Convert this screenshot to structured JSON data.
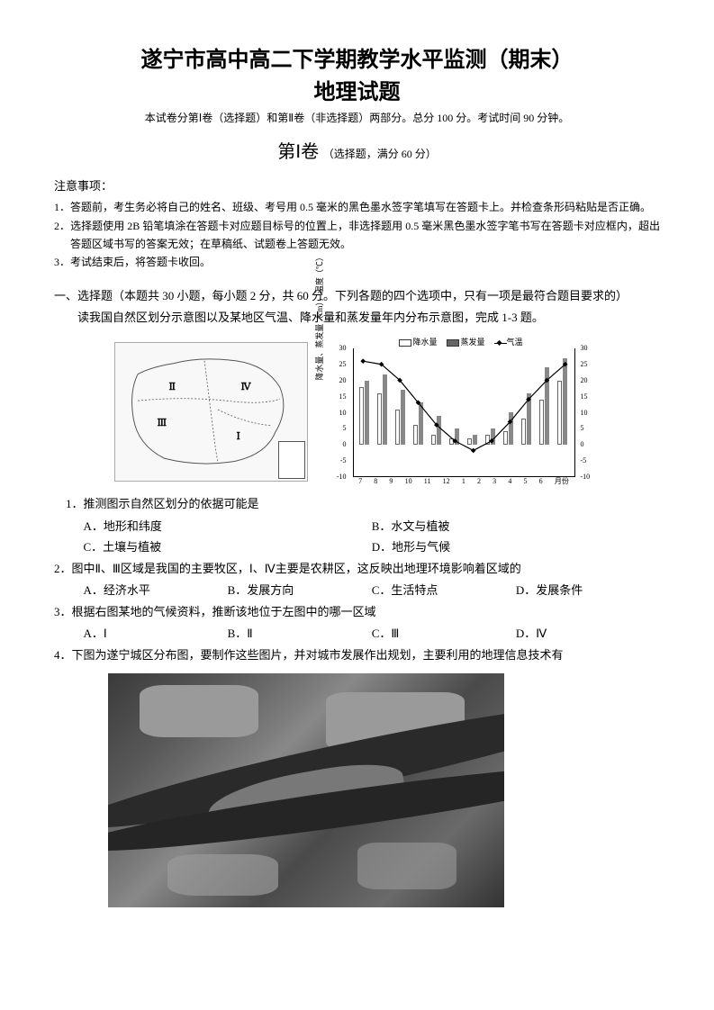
{
  "title": {
    "line1": "遂宁市高中高二下学期教学水平监测（期末）",
    "line2": "地理试题"
  },
  "subtitle": "本试卷分第Ⅰ卷（选择题）和第Ⅱ卷（非选择题）两部分。总分 100 分。考试时间 90 分钟。",
  "section1": {
    "main": "第Ⅰ卷",
    "note": "（选择题，满分 60 分）"
  },
  "notice": {
    "title": "注意事项：",
    "items": [
      "1．答题前，考生务必将自己的姓名、班级、考号用 0.5 毫米的黑色墨水签字笔填写在答题卡上。并检查条形码粘贴是否正确。",
      "2．选择题使用 2B 铅笔填涂在答题卡对应题目标号的位置上，非选择题用 0.5 毫米黑色墨水签字笔书写在答题卡对应框内，超出答题区域书写的答案无效；在草稿纸、试题卷上答题无效。",
      "3．考试结束后，将答题卡收回。"
    ]
  },
  "section_intro": "一、选择题（本题共 30 小题，每小题 2 分，共 60 分。下列各题的四个选项中，只有一项是最符合题目要求的）",
  "passage1": "读我国自然区划分示意图以及某地区气温、降水量和蒸发量年内分布示意图，完成 1-3 题。",
  "map": {
    "regions": [
      "Ⅰ",
      "Ⅱ",
      "Ⅲ",
      "Ⅳ"
    ]
  },
  "chart": {
    "legend": {
      "precip": "降水量",
      "evap": "蒸发量",
      "temp": "气温"
    },
    "ylabel_left": "降水量、蒸发量（cm），温度（℃）",
    "ylabel_right": "温度（℃）",
    "y_ticks_left": [
      "30",
      "25",
      "20",
      "15",
      "10",
      "5",
      "0",
      "-5",
      "-10"
    ],
    "y_ticks_right": [
      "30",
      "25",
      "20",
      "15",
      "10",
      "5",
      "0",
      "-5",
      "-10"
    ],
    "x_labels": [
      "7",
      "8",
      "9",
      "10",
      "11",
      "12",
      "1",
      "2",
      "3",
      "4",
      "5",
      "6"
    ],
    "x_unit": "月份",
    "precip_values": [
      18,
      16,
      11,
      6,
      3,
      2,
      2,
      3,
      4,
      8,
      14,
      20
    ],
    "evap_values": [
      20,
      22,
      17,
      13,
      9,
      5,
      3,
      5,
      10,
      16,
      24,
      27
    ],
    "temp_values": [
      26,
      25,
      20,
      13,
      6,
      1,
      -2,
      1,
      7,
      14,
      20,
      25
    ],
    "bar_color_precip": "#ffffff",
    "bar_color_evap": "#888888",
    "line_color": "#000000",
    "background_color": "#ffffff",
    "ylim": [
      -10,
      30
    ]
  },
  "q1": {
    "text": "1．推测图示自然区划分的依据可能是",
    "optA": "A．地形和纬度",
    "optB": "B．水文与植被",
    "optC": "C．土壤与植被",
    "optD": "D．地形与气候"
  },
  "q2": {
    "text": "2．图中Ⅱ、Ⅲ区域是我国的主要牧区，Ⅰ、Ⅳ主要是农耕区，这反映出地理环境影响着区域的",
    "optA": "A．经济水平",
    "optB": "B．发展方向",
    "optC": "C．生活特点",
    "optD": "D．发展条件"
  },
  "q3": {
    "text": "3．根据右图某地的气候资料，推断该地位于左图中的哪一区域",
    "optA": "A．Ⅰ",
    "optB": "B．Ⅱ",
    "optC": "C．Ⅲ",
    "optD": "D．Ⅳ"
  },
  "q4": {
    "text": "4．下图为遂宁城区分布图，要制作这些图片，并对城市发展作出规划，主要利用的地理信息技术有"
  }
}
